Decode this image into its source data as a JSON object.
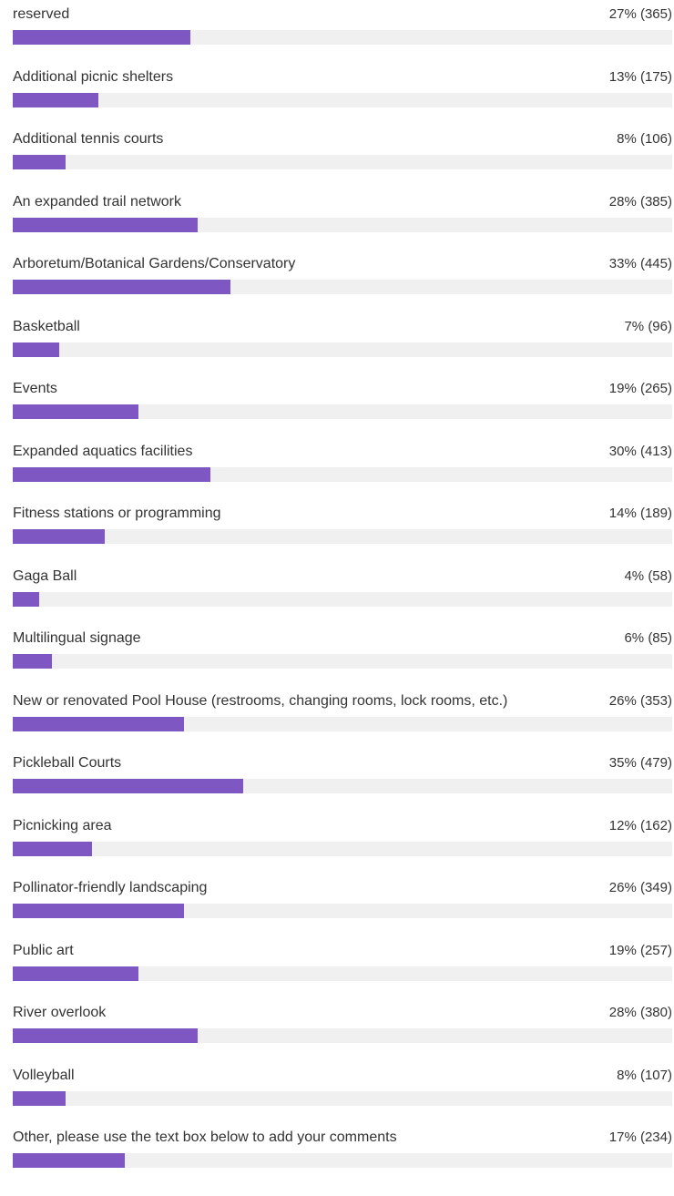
{
  "chart_data": {
    "type": "bar",
    "orientation": "horizontal",
    "color": "#7e57c2",
    "track_color": "#f0f0f0",
    "xlim": [
      0,
      100
    ],
    "categories": [
      "reserved",
      "Additional picnic shelters",
      "Additional tennis courts",
      "An expanded trail network",
      "Arboretum/Botanical Gardens/Conservatory",
      "Basketball",
      "Events",
      "Expanded aquatics facilities",
      "Fitness stations or programming",
      "Gaga Ball",
      "Multilingual signage",
      "New or renovated Pool House (restrooms, changing rooms, lock rooms, etc.)",
      "Pickleball Courts",
      "Picnicking area",
      "Pollinator-friendly landscaping",
      "Public art",
      "River overlook",
      "Volleyball",
      "Other, please use the text box below to add your comments"
    ],
    "values": [
      27,
      13,
      8,
      28,
      33,
      7,
      19,
      30,
      14,
      4,
      6,
      26,
      35,
      12,
      26,
      19,
      28,
      8,
      17
    ],
    "value_labels": [
      "27% (365)",
      "13% (175)",
      "8% (106)",
      "28% (385)",
      "33% (445)",
      "7% (96)",
      "19% (265)",
      "30% (413)",
      "14% (189)",
      "4% (58)",
      "6% (85)",
      "26% (353)",
      "35% (479)",
      "12% (162)",
      "26% (349)",
      "19% (257)",
      "28% (380)",
      "8% (107)",
      "17% (234)"
    ]
  }
}
